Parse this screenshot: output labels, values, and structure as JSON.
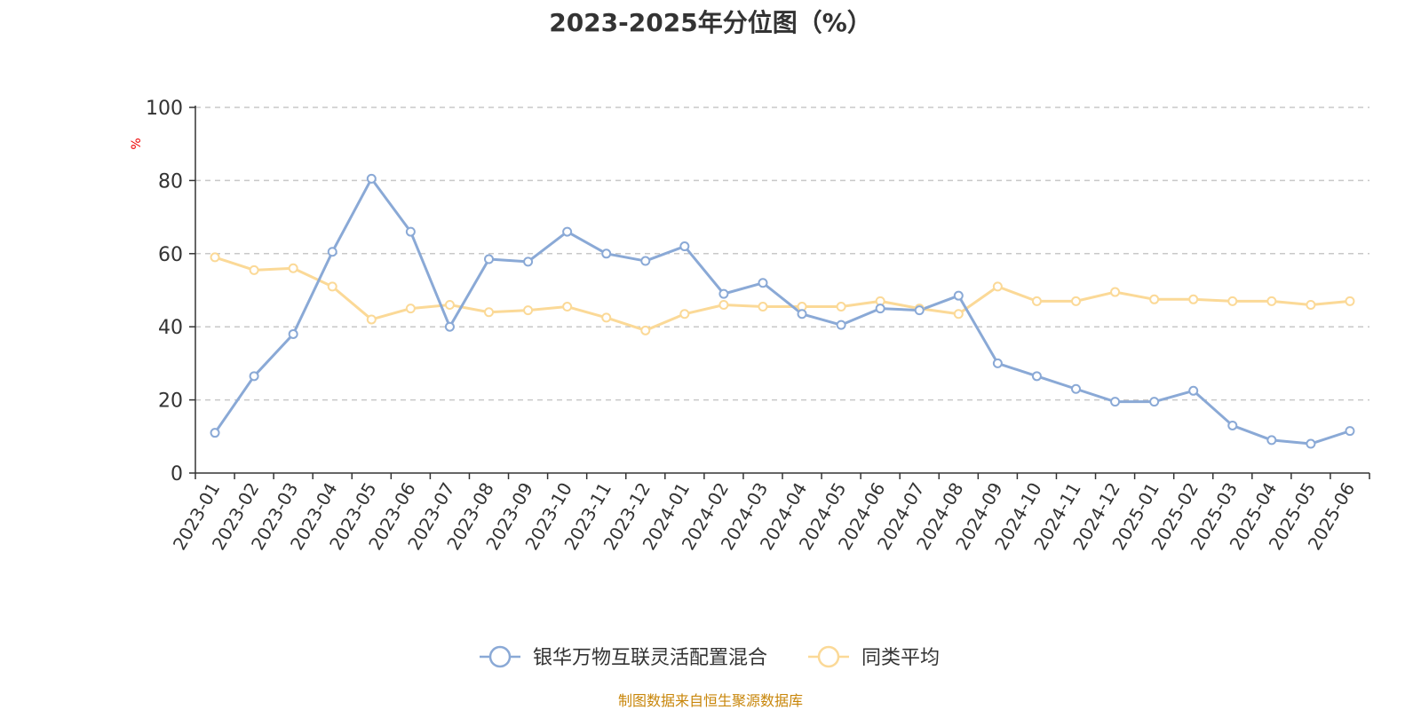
{
  "title": "2023-2025年分位图（%）",
  "source_note": "制图数据来自恒生聚源数据库",
  "chart_data": {
    "type": "line",
    "title": "2023-2025年分位图（%）",
    "ylabel": "%",
    "ylim": [
      0,
      100
    ],
    "yticks": [
      "0",
      "20",
      "40",
      "60",
      "80",
      "100"
    ],
    "grid": true,
    "legend_position": "bottom-center",
    "categories": [
      "2023-01",
      "2023-02",
      "2023-03",
      "2023-04",
      "2023-05",
      "2023-06",
      "2023-07",
      "2023-08",
      "2023-09",
      "2023-10",
      "2023-11",
      "2023-12",
      "2024-01",
      "2024-02",
      "2024-03",
      "2024-04",
      "2024-05",
      "2024-06",
      "2024-07",
      "2024-08",
      "2024-09",
      "2024-10",
      "2024-11",
      "2024-12",
      "2025-01",
      "2025-02",
      "2025-03",
      "2025-04",
      "2025-05",
      "2025-06"
    ],
    "series": [
      {
        "name": "银华万物互联灵活配置混合",
        "color": "#8aa9d6",
        "values": [
          11,
          26.5,
          38,
          60.5,
          80.5,
          66,
          40,
          58.5,
          57.8,
          66,
          60,
          58,
          62,
          49,
          52,
          43.5,
          40.5,
          45,
          44.5,
          48.5,
          30,
          26.5,
          23,
          19.5,
          19.5,
          22.5,
          13,
          9,
          8,
          11.5
        ]
      },
      {
        "name": "同类平均",
        "color": "#fbd997",
        "values": [
          59,
          55.5,
          56,
          51,
          42,
          45,
          46,
          44,
          44.5,
          45.5,
          42.5,
          39,
          43.5,
          46,
          45.5,
          45.5,
          45.5,
          47,
          45,
          43.5,
          51,
          47,
          47,
          49.5,
          47.5,
          47.5,
          47,
          47,
          46,
          47
        ]
      }
    ]
  }
}
